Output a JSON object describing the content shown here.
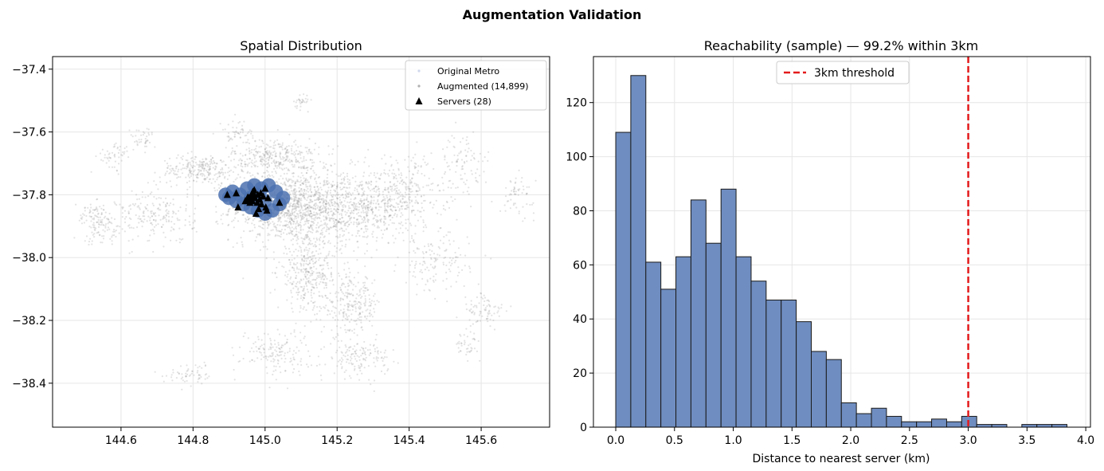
{
  "figure": {
    "suptitle": "Augmentation Validation"
  },
  "chart_data": [
    {
      "type": "scatter",
      "title": "Spatial Distribution",
      "xlabel": "",
      "ylabel": "",
      "xlim": [
        144.41,
        145.79
      ],
      "ylim": [
        -38.54,
        -37.36
      ],
      "xticks": [
        144.6,
        144.8,
        145.0,
        145.2,
        145.4,
        145.6
      ],
      "xtick_labels": [
        "144.6",
        "144.8",
        "145.0",
        "145.2",
        "145.4",
        "145.6"
      ],
      "yticks": [
        -37.4,
        -37.6,
        -37.8,
        -38.0,
        -38.2,
        -38.4
      ],
      "ytick_labels": [
        "−37.4",
        "−37.6",
        "−37.8",
        "−38.0",
        "−38.2",
        "−38.4"
      ],
      "grid": true,
      "legend_position": "upper-right",
      "legend": [
        {
          "label": "Original Metro",
          "marker": "dot",
          "color": "#cfd8ec"
        },
        {
          "label": "Augmented (14,899)",
          "marker": "dot",
          "color": "#b0b0b0"
        },
        {
          "label": "Servers (28)",
          "marker": "triangle",
          "color": "#000000"
        }
      ],
      "series": [
        {
          "name": "Original Metro",
          "color": "#4c72b0",
          "note_region": "dense cluster around CBD",
          "points": [
            [
              144.89,
              -37.8
            ],
            [
              144.91,
              -37.79
            ],
            [
              144.93,
              -37.8
            ],
            [
              144.95,
              -37.78
            ],
            [
              144.97,
              -37.77
            ],
            [
              144.99,
              -37.78
            ],
            [
              145.01,
              -37.77
            ],
            [
              145.03,
              -37.79
            ],
            [
              145.05,
              -37.81
            ],
            [
              145.04,
              -37.83
            ],
            [
              145.02,
              -37.85
            ],
            [
              145.0,
              -37.86
            ],
            [
              144.98,
              -37.85
            ],
            [
              144.96,
              -37.84
            ],
            [
              144.94,
              -37.83
            ],
            [
              144.92,
              -37.82
            ],
            [
              144.9,
              -37.81
            ],
            [
              144.96,
              -37.81
            ],
            [
              144.98,
              -37.8
            ],
            [
              145.0,
              -37.82
            ]
          ]
        },
        {
          "name": "Augmented (14,899)",
          "color": "#808080",
          "clusters": [
            {
              "center": [
                145.06,
                -37.84
              ],
              "spread": [
                0.13,
                0.09
              ],
              "n": 900
            },
            {
              "center": [
                145.22,
                -37.84
              ],
              "spread": [
                0.16,
                0.1
              ],
              "n": 800
            },
            {
              "center": [
                145.03,
                -37.68
              ],
              "spread": [
                0.1,
                0.05
              ],
              "n": 350
            },
            {
              "center": [
                144.82,
                -37.72
              ],
              "spread": [
                0.09,
                0.04
              ],
              "n": 250
            },
            {
              "center": [
                145.38,
                -37.8
              ],
              "spread": [
                0.1,
                0.1
              ],
              "n": 300
            },
            {
              "center": [
                145.12,
                -38.05
              ],
              "spread": [
                0.07,
                0.1
              ],
              "n": 350
            },
            {
              "center": [
                145.24,
                -38.15
              ],
              "spread": [
                0.07,
                0.08
              ],
              "n": 250
            },
            {
              "center": [
                145.26,
                -38.32
              ],
              "spread": [
                0.07,
                0.05
              ],
              "n": 150
            },
            {
              "center": [
                145.03,
                -38.3
              ],
              "spread": [
                0.08,
                0.06
              ],
              "n": 160
            },
            {
              "center": [
                144.7,
                -37.87
              ],
              "spread": [
                0.09,
                0.07
              ],
              "n": 200
            },
            {
              "center": [
                144.55,
                -37.9
              ],
              "spread": [
                0.05,
                0.05
              ],
              "n": 100
            },
            {
              "center": [
                145.47,
                -38.02
              ],
              "spread": [
                0.08,
                0.08
              ],
              "n": 140
            },
            {
              "center": [
                145.55,
                -37.7
              ],
              "spread": [
                0.06,
                0.08
              ],
              "n": 90
            },
            {
              "center": [
                145.61,
                -38.17
              ],
              "spread": [
                0.05,
                0.05
              ],
              "n": 80
            },
            {
              "center": [
                144.58,
                -37.68
              ],
              "spread": [
                0.04,
                0.04
              ],
              "n": 50
            },
            {
              "center": [
                144.66,
                -37.62
              ],
              "spread": [
                0.03,
                0.03
              ],
              "n": 40
            },
            {
              "center": [
                144.92,
                -37.6
              ],
              "spread": [
                0.04,
                0.03
              ],
              "n": 50
            },
            {
              "center": [
                144.52,
                -37.86
              ],
              "spread": [
                0.03,
                0.03
              ],
              "n": 40
            },
            {
              "center": [
                145.1,
                -37.5
              ],
              "spread": [
                0.02,
                0.02
              ],
              "n": 30
            },
            {
              "center": [
                144.8,
                -38.37
              ],
              "spread": [
                0.06,
                0.03
              ],
              "n": 60
            },
            {
              "center": [
                145.7,
                -37.8
              ],
              "spread": [
                0.04,
                0.05
              ],
              "n": 60
            },
            {
              "center": [
                145.56,
                -38.28
              ],
              "spread": [
                0.03,
                0.03
              ],
              "n": 40
            }
          ]
        },
        {
          "name": "Servers (28)",
          "color": "#000000",
          "marker": "triangle",
          "points": [
            [
              144.895,
              -37.8
            ],
            [
              144.92,
              -37.795
            ],
            [
              144.925,
              -37.84
            ],
            [
              144.945,
              -37.82
            ],
            [
              144.95,
              -37.815
            ],
            [
              144.955,
              -37.81
            ],
            [
              144.96,
              -37.805
            ],
            [
              144.962,
              -37.815
            ],
            [
              144.965,
              -37.82
            ],
            [
              144.968,
              -37.8
            ],
            [
              144.97,
              -37.785
            ],
            [
              144.972,
              -37.81
            ],
            [
              144.975,
              -37.86
            ],
            [
              144.98,
              -37.8
            ],
            [
              144.985,
              -37.815
            ],
            [
              144.99,
              -37.83
            ],
            [
              144.995,
              -37.805
            ],
            [
              145.0,
              -37.78
            ],
            [
              145.002,
              -37.84
            ],
            [
              145.005,
              -37.85
            ],
            [
              144.958,
              -37.825
            ],
            [
              144.978,
              -37.825
            ],
            [
              144.988,
              -37.795
            ],
            [
              145.04,
              -37.825
            ],
            [
              144.952,
              -37.808
            ],
            [
              144.966,
              -37.79
            ],
            [
              144.982,
              -37.845
            ],
            [
              145.008,
              -37.81
            ]
          ]
        }
      ]
    },
    {
      "type": "bar",
      "subtype": "histogram",
      "title": "Reachability (sample)  —  99.2% within 3km",
      "xlabel": "Distance to nearest server (km)",
      "ylabel": "",
      "xlim": [
        -0.19,
        4.04
      ],
      "ylim": [
        0,
        137
      ],
      "xticks": [
        0.0,
        0.5,
        1.0,
        1.5,
        2.0,
        2.5,
        3.0,
        3.5,
        4.0
      ],
      "xtick_labels": [
        "0.0",
        "0.5",
        "1.0",
        "1.5",
        "2.0",
        "2.5",
        "3.0",
        "3.5",
        "4.0"
      ],
      "yticks": [
        0,
        20,
        40,
        60,
        80,
        100,
        120
      ],
      "ytick_labels": [
        "0",
        "20",
        "40",
        "60",
        "80",
        "100",
        "120"
      ],
      "grid": true,
      "bar_color": "#6f8dc0",
      "edge_color": "#1a1a1a",
      "bin_start": 0.0,
      "bin_width": 0.128,
      "values": [
        109,
        130,
        61,
        51,
        63,
        84,
        68,
        88,
        63,
        54,
        47,
        47,
        39,
        28,
        25,
        9,
        5,
        7,
        4,
        2,
        2,
        3,
        2,
        4,
        1,
        1,
        0,
        1,
        1,
        1
      ],
      "threshold": {
        "x": 3.0,
        "label": "3km threshold",
        "color": "#e41a1c",
        "style": "dashed"
      },
      "legend_position": "upper-center"
    }
  ]
}
